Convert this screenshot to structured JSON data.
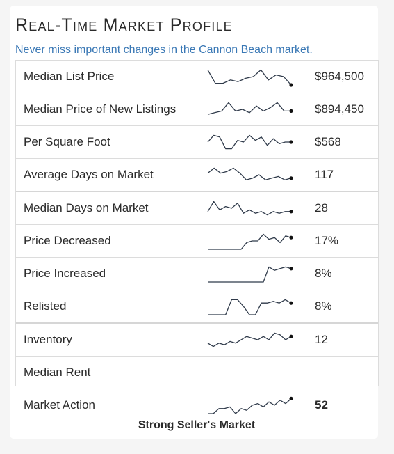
{
  "title": "Real-Time Market Profile",
  "subtitle": "Never miss important changes in the Cannon Beach market",
  "subtitle_end": ".",
  "accent_color": "#3a78b5",
  "rows": [
    {
      "label": "Median List Price",
      "value": "$964,500",
      "spark": [
        0.9,
        0.1,
        0.1,
        0.3,
        0.2,
        0.4,
        0.5,
        0.9,
        0.3,
        0.6,
        0.5,
        0.0
      ]
    },
    {
      "label": "Median Price of New Listings",
      "value": "$894,450",
      "spark": [
        0.2,
        0.3,
        0.4,
        0.9,
        0.4,
        0.5,
        0.3,
        0.7,
        0.4,
        0.6,
        0.9,
        0.4,
        0.4
      ]
    },
    {
      "label": "Per Square Foot",
      "value": "$568",
      "spark": [
        0.5,
        0.9,
        0.8,
        0.1,
        0.1,
        0.6,
        0.5,
        0.9,
        0.6,
        0.8,
        0.3,
        0.7,
        0.4,
        0.5,
        0.5
      ]
    },
    {
      "label": "Average Days on Market",
      "value": "117",
      "spark": [
        0.6,
        0.9,
        0.6,
        0.7,
        0.9,
        0.6,
        0.2,
        0.3,
        0.5,
        0.2,
        0.3,
        0.4,
        0.2,
        0.3
      ]
    },
    {
      "label": "Median Days on Market",
      "value": "28",
      "spark": [
        0.3,
        0.9,
        0.4,
        0.6,
        0.5,
        0.8,
        0.2,
        0.4,
        0.2,
        0.3,
        0.1,
        0.3,
        0.2,
        0.3,
        0.3
      ]
    },
    {
      "label": "Price Decreased",
      "value": "17%",
      "spark": [
        0.0,
        0.0,
        0.0,
        0.0,
        0.0,
        0.0,
        0.0,
        0.4,
        0.5,
        0.5,
        0.9,
        0.6,
        0.7,
        0.4,
        0.8,
        0.7
      ]
    },
    {
      "label": "Price Increased",
      "value": "8%",
      "spark": [
        0.0,
        0.0,
        0.0,
        0.0,
        0.0,
        0.0,
        0.0,
        0.0,
        0.0,
        0.0,
        0.0,
        0.9,
        0.7,
        0.8,
        0.9,
        0.8
      ]
    },
    {
      "label": "Relisted",
      "value": "8%",
      "spark": [
        0.0,
        0.0,
        0.0,
        0.0,
        0.9,
        0.9,
        0.5,
        0.0,
        0.0,
        0.7,
        0.7,
        0.8,
        0.7,
        0.9,
        0.7
      ]
    },
    {
      "label": "Inventory",
      "value": "12",
      "spark": [
        0.3,
        0.1,
        0.3,
        0.2,
        0.4,
        0.3,
        0.5,
        0.7,
        0.6,
        0.5,
        0.7,
        0.5,
        0.9,
        0.8,
        0.5,
        0.7
      ]
    },
    {
      "label": "Median Rent",
      "value": "",
      "spark": []
    },
    {
      "label": "Market Action",
      "value": "52",
      "spark": [
        0.0,
        0.0,
        0.3,
        0.3,
        0.4,
        0.0,
        0.3,
        0.2,
        0.5,
        0.6,
        0.4,
        0.7,
        0.5,
        0.8,
        0.6,
        0.9
      ]
    }
  ],
  "footer": "Strong Seller's Market"
}
